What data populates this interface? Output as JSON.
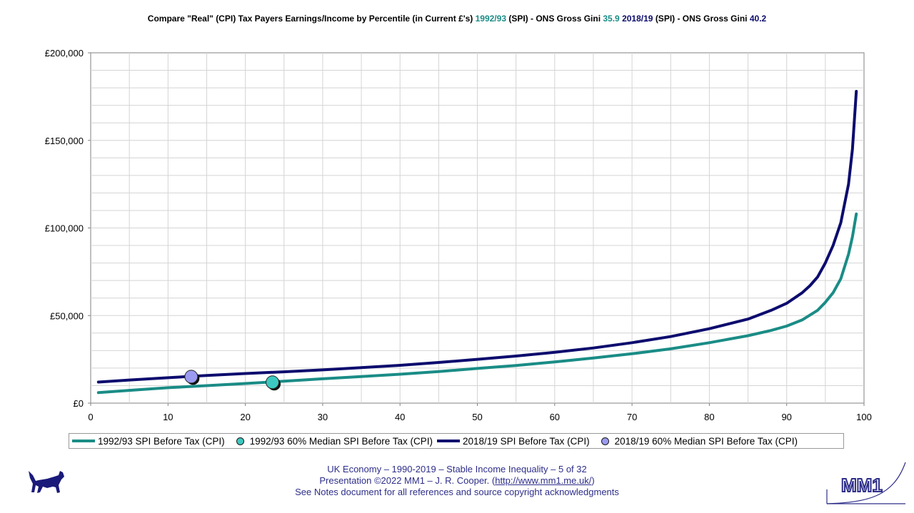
{
  "title": {
    "prefix": "Compare \"Real\" (CPI) Tax Payers Earnings/Income by Percentile (in Current £'s)",
    "year1": "1992/93",
    "mid1": "(SPI) - ONS Gross Gini",
    "gini1": "35.9",
    "year2": "2018/19",
    "mid2": "(SPI) - ONS Gross Gini",
    "gini2": "40.2"
  },
  "colors": {
    "teal": "#1a8c86",
    "navy": "#0c0c6e",
    "teal_dot": "#3cc8c0",
    "navy_dot": "#9b9bf0",
    "footer": "#2e2e8a"
  },
  "chart_data": {
    "type": "line",
    "xlim": [
      0,
      100
    ],
    "ylim": [
      0,
      200000
    ],
    "x_ticks": [
      "0",
      "10",
      "20",
      "30",
      "40",
      "50",
      "60",
      "70",
      "80",
      "90",
      "100"
    ],
    "y_ticks": [
      "£0",
      "£50,000",
      "£100,000",
      "£150,000",
      "£200,000"
    ],
    "grid": true,
    "legend_position": "bottom",
    "series": [
      {
        "name": "1992/93 SPI  Before Tax (CPI)",
        "color": "#1a8c86",
        "points": [
          [
            1,
            6000
          ],
          [
            5,
            7300
          ],
          [
            10,
            8800
          ],
          [
            15,
            10000
          ],
          [
            20,
            11200
          ],
          [
            25,
            12500
          ],
          [
            30,
            13900
          ],
          [
            35,
            15200
          ],
          [
            40,
            16500
          ],
          [
            45,
            18000
          ],
          [
            50,
            19800
          ],
          [
            55,
            21500
          ],
          [
            60,
            23500
          ],
          [
            65,
            25800
          ],
          [
            70,
            28200
          ],
          [
            75,
            31000
          ],
          [
            80,
            34500
          ],
          [
            85,
            38500
          ],
          [
            88,
            41500
          ],
          [
            90,
            44000
          ],
          [
            92,
            47500
          ],
          [
            94,
            53000
          ],
          [
            95,
            57500
          ],
          [
            96,
            63000
          ],
          [
            97,
            71000
          ],
          [
            98,
            85000
          ],
          [
            98.5,
            95000
          ],
          [
            99,
            108000
          ]
        ]
      },
      {
        "name": "1992/93 60% Median SPI Before Tax (CPI)",
        "color": "#3cc8c0",
        "points": [
          [
            23.5,
            11900
          ]
        ]
      },
      {
        "name": "2018/19 SPI  Before Tax (CPI)",
        "color": "#0c0c6e",
        "points": [
          [
            1,
            12000
          ],
          [
            5,
            13200
          ],
          [
            10,
            14500
          ],
          [
            15,
            15800
          ],
          [
            20,
            16900
          ],
          [
            25,
            17900
          ],
          [
            30,
            19000
          ],
          [
            35,
            20300
          ],
          [
            40,
            21600
          ],
          [
            45,
            23200
          ],
          [
            50,
            25000
          ],
          [
            55,
            26900
          ],
          [
            60,
            29000
          ],
          [
            65,
            31500
          ],
          [
            70,
            34500
          ],
          [
            75,
            38000
          ],
          [
            80,
            42500
          ],
          [
            85,
            48000
          ],
          [
            88,
            53000
          ],
          [
            90,
            57000
          ],
          [
            92,
            63000
          ],
          [
            93,
            67000
          ],
          [
            94,
            72000
          ],
          [
            95,
            80000
          ],
          [
            96,
            90000
          ],
          [
            97,
            103000
          ],
          [
            98,
            125000
          ],
          [
            98.5,
            145000
          ],
          [
            99,
            178000
          ]
        ]
      },
      {
        "name": "2018/19 60% Median SPI Before Tax (CPI)",
        "color": "#9b9bf0",
        "points": [
          [
            13,
            15100
          ]
        ]
      }
    ]
  },
  "legend": {
    "s1": "1992/93 SPI  Before Tax (CPI)",
    "s2": "1992/93 60% Median SPI Before Tax (CPI)",
    "s3": "2018/19 SPI  Before Tax (CPI)",
    "s4": "2018/19 60% Median SPI Before Tax (CPI)"
  },
  "footer": {
    "line1": "UK Economy – 1990-2019 – Stable Income Inequality – 5 of 32",
    "line2_prefix": "Presentation ©2022 MM1 – J. R. Cooper. (",
    "link": "http://www.mm1.me.uk/",
    "line2_suffix": ")",
    "line3": "See Notes document for all references and source copyright acknowledgments"
  },
  "logo": {
    "text": "MM1",
    "dog_icon": "dog-silhouette-icon"
  }
}
